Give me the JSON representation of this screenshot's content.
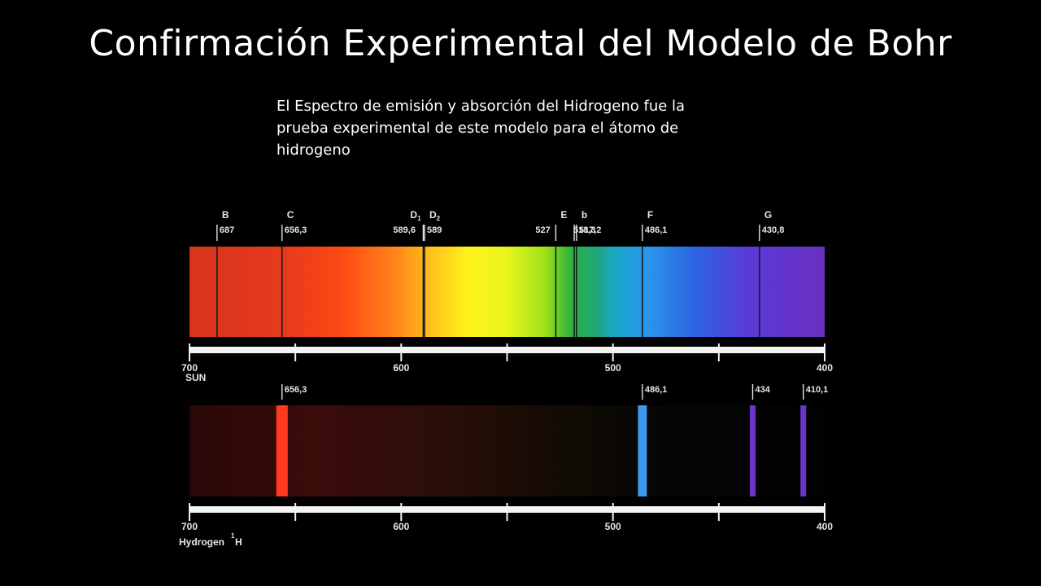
{
  "slide": {
    "title": "Confirmación Experimental del Modelo de Bohr",
    "subtitle": "El Espectro de emisión y absorción del Hidrogeno fue la prueba experimental de este modelo para el átomo de hidrogeno"
  },
  "sun_spectrum": {
    "label": "SUN",
    "lines": [
      {
        "letter": "B",
        "value": "687",
        "wl": 687
      },
      {
        "letter": "C",
        "value": "656,3",
        "wl": 656.3
      },
      {
        "letter": "D",
        "sub": "1",
        "value": "589,6",
        "wl": 589.6
      },
      {
        "letter": "D",
        "sub": "2",
        "value": "589",
        "wl": 589
      },
      {
        "letter": "E",
        "value": "527",
        "wl": 527
      },
      {
        "letter": "",
        "value": "518,3",
        "wl": 518.3
      },
      {
        "letter": "b",
        "value": "517,2",
        "wl": 517.2
      },
      {
        "letter": "F",
        "value": "486,1",
        "wl": 486.1
      },
      {
        "letter": "G",
        "value": "430,8",
        "wl": 430.8
      }
    ]
  },
  "hydrogen_spectrum": {
    "label": "Hydrogen",
    "isotope": "1",
    "element": "H",
    "lines": [
      {
        "value": "656,3",
        "wl": 656.3,
        "color": "#ff3b1f"
      },
      {
        "value": "486,1",
        "wl": 486.1,
        "color": "#3a9bf0"
      },
      {
        "value": "434",
        "wl": 434,
        "color": "#6a35c8"
      },
      {
        "value": "410,1",
        "wl": 410.1,
        "color": "#6a35c8"
      }
    ]
  },
  "axis": {
    "ticks": [
      {
        "wl": 700,
        "label": "700"
      },
      {
        "wl": 650,
        "label": ""
      },
      {
        "wl": 600,
        "label": "600"
      },
      {
        "wl": 550,
        "label": ""
      },
      {
        "wl": 500,
        "label": "500"
      },
      {
        "wl": 450,
        "label": ""
      },
      {
        "wl": 400,
        "label": "400"
      }
    ]
  }
}
